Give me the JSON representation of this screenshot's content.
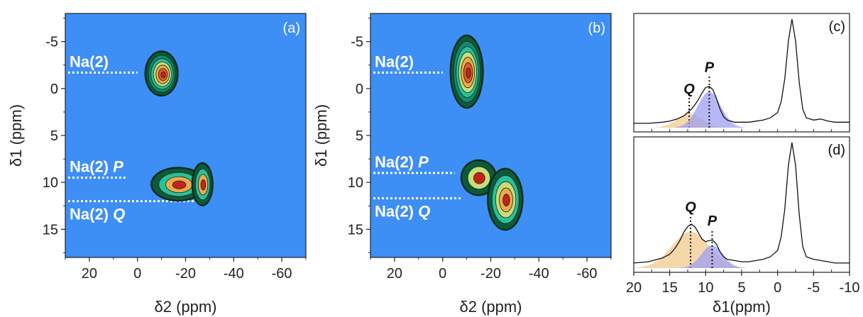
{
  "colors": {
    "plot_bg": "#3d8ef5",
    "guide": "#ffffff",
    "contour_dark": "#0a2a1a",
    "shade_Q": "#f2c98e",
    "shade_P": "#9d9ff0"
  },
  "chart_data": [
    {
      "id": "a",
      "type": "contour",
      "tag": "(a)",
      "xlabel": "δ2 (ppm)",
      "ylabel": "δ1 (ppm)",
      "xlim": [
        30,
        -70
      ],
      "ylim": [
        -8,
        18
      ],
      "x_ticks": [
        20,
        0,
        -20,
        -40,
        -60
      ],
      "y_ticks": [
        -5,
        0,
        5,
        10,
        15
      ],
      "guides": [
        {
          "label": "Na(2)",
          "italic": "",
          "y": -1.7,
          "x_end": 0,
          "label_pos": "above"
        },
        {
          "label": "Na(2) ",
          "italic": "P",
          "y": 9.5,
          "x_end": 5,
          "label_pos": "above"
        },
        {
          "label": "Na(2) ",
          "italic": "Q",
          "y": 12.0,
          "x_end": -25,
          "label_pos": "below"
        }
      ],
      "peaks": [
        {
          "cx": -10,
          "cy": -1.6,
          "rx": 6.5,
          "ry": 2.3,
          "levels": 7
        },
        {
          "cx": -17,
          "cy": 10.2,
          "rx": 11,
          "ry": 1.7,
          "levels": 4
        },
        {
          "cx": -27,
          "cy": 10.2,
          "rx": 4,
          "ry": 2.2,
          "levels": 4
        }
      ]
    },
    {
      "id": "b",
      "type": "contour",
      "tag": "(b)",
      "xlabel": "δ2 (ppm)",
      "ylabel": "δ1 (ppm)",
      "xlim": [
        30,
        -70
      ],
      "ylim": [
        -8,
        18
      ],
      "x_ticks": [
        20,
        0,
        -20,
        -40,
        -60
      ],
      "y_ticks": [
        -5,
        0,
        5,
        10,
        15
      ],
      "guides": [
        {
          "label": "Na(2)",
          "italic": "",
          "y": -1.7,
          "x_end": 0,
          "label_pos": "above"
        },
        {
          "label": "Na(2) ",
          "italic": "P",
          "y": 9.0,
          "x_end": -5,
          "label_pos": "above"
        },
        {
          "label": "Na(2) ",
          "italic": "Q",
          "y": 11.7,
          "x_end": -8,
          "label_pos": "below"
        }
      ],
      "peaks": [
        {
          "cx": -10,
          "cy": -1.8,
          "rx": 6.5,
          "ry": 3.8,
          "levels": 7
        },
        {
          "cx": -15,
          "cy": 9.5,
          "rx": 7,
          "ry": 1.8,
          "levels": 3
        },
        {
          "cx": -26,
          "cy": 11.8,
          "rx": 7,
          "ry": 3.2,
          "levels": 5
        }
      ]
    },
    {
      "id": "c",
      "type": "line",
      "tag": "(c)",
      "xlim": [
        20,
        -10
      ],
      "x": [
        20,
        18,
        16,
        15,
        14,
        13,
        12.5,
        12,
        11.5,
        11,
        10.5,
        10,
        9.5,
        9,
        8.5,
        8,
        7.5,
        7,
        6,
        5,
        4,
        3,
        2,
        1,
        0,
        -0.5,
        -1,
        -1.5,
        -2,
        -2.5,
        -3,
        -3.5,
        -4,
        -5,
        -6,
        -7,
        -8,
        -10
      ],
      "y": [
        0.04,
        0.04,
        0.05,
        0.06,
        0.08,
        0.11,
        0.14,
        0.17,
        0.21,
        0.26,
        0.32,
        0.37,
        0.38,
        0.35,
        0.27,
        0.17,
        0.1,
        0.07,
        0.05,
        0.05,
        0.05,
        0.06,
        0.07,
        0.09,
        0.14,
        0.24,
        0.45,
        0.8,
        1.0,
        0.8,
        0.42,
        0.17,
        0.09,
        0.07,
        0.08,
        0.06,
        0.05,
        0.05
      ],
      "components": [
        {
          "name": "Q",
          "center": 12.3,
          "height": 0.13,
          "width": 1.7
        },
        {
          "name": "P",
          "center": 9.5,
          "height": 0.33,
          "width": 1.6
        }
      ]
    },
    {
      "id": "d",
      "type": "line",
      "tag": "(d)",
      "xlabel": "δ1(ppm)",
      "xlim": [
        20,
        -10
      ],
      "x_ticks": [
        20,
        15,
        10,
        5,
        0,
        -5,
        -10
      ],
      "x": [
        20,
        18,
        16,
        15,
        14.5,
        14,
        13.5,
        13,
        12.5,
        12,
        11.5,
        11,
        10.5,
        10,
        9.5,
        9,
        8.5,
        8,
        7.5,
        7,
        6,
        5,
        4,
        3,
        2,
        1,
        0,
        -0.5,
        -1,
        -1.5,
        -2,
        -2.5,
        -3,
        -3.5,
        -4,
        -5,
        -6,
        -7,
        -8,
        -10
      ],
      "y": [
        0.04,
        0.05,
        0.08,
        0.11,
        0.14,
        0.18,
        0.23,
        0.29,
        0.33,
        0.35,
        0.33,
        0.28,
        0.23,
        0.21,
        0.22,
        0.22,
        0.19,
        0.13,
        0.09,
        0.07,
        0.06,
        0.05,
        0.05,
        0.06,
        0.07,
        0.09,
        0.14,
        0.25,
        0.47,
        0.82,
        1.0,
        0.82,
        0.43,
        0.17,
        0.09,
        0.07,
        0.06,
        0.05,
        0.04,
        0.04
      ],
      "components": [
        {
          "name": "Q",
          "center": 12.1,
          "height": 0.29,
          "width": 2.6
        },
        {
          "name": "P",
          "center": 9.1,
          "height": 0.18,
          "width": 1.5
        }
      ]
    }
  ]
}
